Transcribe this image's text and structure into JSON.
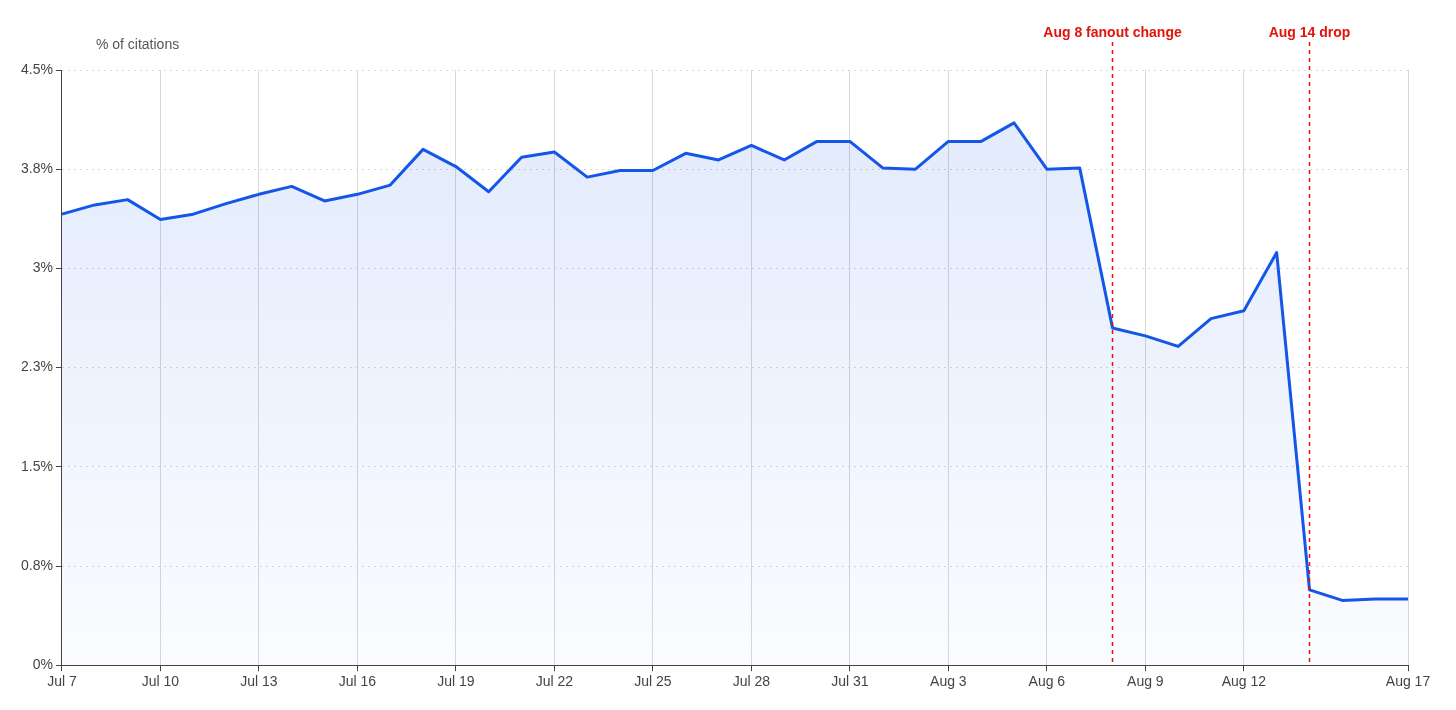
{
  "chart_data": {
    "type": "area",
    "ylabel": "% of citations",
    "x": [
      "--07-07",
      "--07-08",
      "--07-09",
      "--07-10",
      "--07-11",
      "--07-12",
      "--07-13",
      "--07-14",
      "--07-15",
      "--07-16",
      "--07-17",
      "--07-18",
      "--07-19",
      "--07-20",
      "--07-21",
      "--07-22",
      "--07-23",
      "--07-24",
      "--07-25",
      "--07-26",
      "--07-27",
      "--07-28",
      "--07-29",
      "--07-30",
      "--07-31",
      "--08-01",
      "--08-02",
      "--08-03",
      "--08-04",
      "--08-05",
      "--08-06",
      "--08-07",
      "--08-08",
      "--08-09",
      "--08-10",
      "--08-11",
      "--08-12",
      "--08-13",
      "--08-14",
      "--08-15",
      "--08-16",
      "--08-17"
    ],
    "series": [
      {
        "color": "#1456e8",
        "values": [
          3.41,
          3.48,
          3.52,
          3.37,
          3.41,
          3.49,
          3.56,
          3.62,
          3.51,
          3.56,
          3.63,
          3.9,
          3.77,
          3.58,
          3.84,
          3.88,
          3.69,
          3.74,
          3.74,
          3.87,
          3.82,
          3.93,
          3.82,
          3.96,
          3.96,
          3.76,
          3.75,
          3.96,
          3.96,
          4.1,
          3.75,
          3.76,
          2.55,
          2.49,
          2.41,
          2.62,
          2.68,
          3.12,
          0.57,
          0.49,
          0.5,
          0.5
        ]
      }
    ],
    "xlim": [
      "--07-07",
      "--08-17"
    ],
    "xticks": [
      {
        "value": "--07-07",
        "label": "Jul 7"
      },
      {
        "value": "--07-10",
        "label": "Jul 10"
      },
      {
        "value": "--07-13",
        "label": "Jul 13"
      },
      {
        "value": "--07-16",
        "label": "Jul 16"
      },
      {
        "value": "--07-19",
        "label": "Jul 19"
      },
      {
        "value": "--07-22",
        "label": "Jul 22"
      },
      {
        "value": "--07-25",
        "label": "Jul 25"
      },
      {
        "value": "--07-28",
        "label": "Jul 28"
      },
      {
        "value": "--07-31",
        "label": "Jul 31"
      },
      {
        "value": "--08-03",
        "label": "Aug 3"
      },
      {
        "value": "--08-06",
        "label": "Aug 6"
      },
      {
        "value": "--08-09",
        "label": "Aug 9"
      },
      {
        "value": "--08-12",
        "label": "Aug 12"
      },
      {
        "value": "--08-17",
        "label": "Aug 17"
      }
    ],
    "ylim": [
      0,
      4.5
    ],
    "yticks": [
      {
        "value": 0,
        "label": "0%"
      },
      {
        "value": 0.75,
        "label": "0.8%"
      },
      {
        "value": 1.5,
        "label": "1.5%"
      },
      {
        "value": 2.25,
        "label": "2.3%"
      },
      {
        "value": 3,
        "label": "3%"
      },
      {
        "value": 3.75,
        "label": "3.8%"
      },
      {
        "value": 4.5,
        "label": "4.5%"
      }
    ],
    "ref_lines": [
      {
        "axis": "x",
        "value": "--08-08",
        "label": "Aug 8 fanout change",
        "color": "#e3120b",
        "line_style": "dashed"
      },
      {
        "axis": "x",
        "value": "--08-14",
        "label": "Aug 14 drop",
        "color": "#e3120b",
        "line_style": "dashed"
      }
    ],
    "grid": "dotted_placeholder"
  }
}
